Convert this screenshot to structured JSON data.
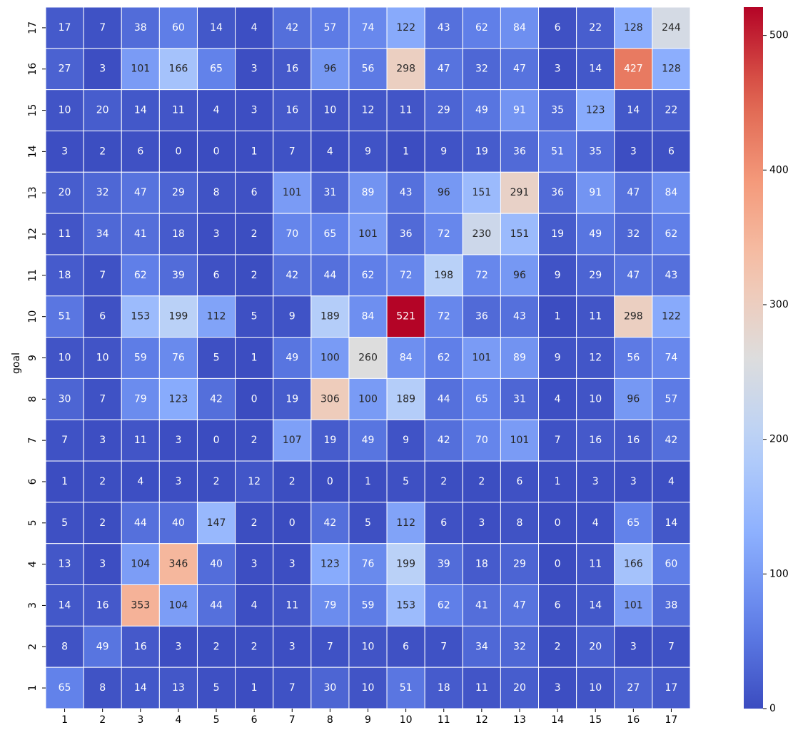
{
  "chart_data": {
    "type": "heatmap",
    "title": "",
    "xlabel": "",
    "ylabel": "goal",
    "x_categories": [
      "1",
      "2",
      "3",
      "4",
      "5",
      "6",
      "7",
      "8",
      "9",
      "10",
      "11",
      "12",
      "13",
      "14",
      "15",
      "16",
      "17"
    ],
    "y_categories": [
      "17",
      "16",
      "15",
      "14",
      "13",
      "12",
      "11",
      "10",
      "9",
      "8",
      "7",
      "6",
      "5",
      "4",
      "3",
      "2",
      "1"
    ],
    "values": [
      [
        17,
        7,
        38,
        60,
        14,
        4,
        42,
        57,
        74,
        122,
        43,
        62,
        84,
        6,
        22,
        128,
        244
      ],
      [
        27,
        3,
        101,
        166,
        65,
        3,
        16,
        96,
        56,
        298,
        47,
        32,
        47,
        3,
        14,
        427,
        128
      ],
      [
        10,
        20,
        14,
        11,
        4,
        3,
        16,
        10,
        12,
        11,
        29,
        49,
        91,
        35,
        123,
        14,
        22
      ],
      [
        3,
        2,
        6,
        0,
        0,
        1,
        7,
        4,
        9,
        1,
        9,
        19,
        36,
        51,
        35,
        3,
        6
      ],
      [
        20,
        32,
        47,
        29,
        8,
        6,
        101,
        31,
        89,
        43,
        96,
        151,
        291,
        36,
        91,
        47,
        84
      ],
      [
        11,
        34,
        41,
        18,
        3,
        2,
        70,
        65,
        101,
        36,
        72,
        230,
        151,
        19,
        49,
        32,
        62
      ],
      [
        18,
        7,
        62,
        39,
        6,
        2,
        42,
        44,
        62,
        72,
        198,
        72,
        96,
        9,
        29,
        47,
        43
      ],
      [
        51,
        6,
        153,
        199,
        112,
        5,
        9,
        189,
        84,
        521,
        72,
        36,
        43,
        1,
        11,
        298,
        122
      ],
      [
        10,
        10,
        59,
        76,
        5,
        1,
        49,
        100,
        260,
        84,
        62,
        101,
        89,
        9,
        12,
        56,
        74
      ],
      [
        30,
        7,
        79,
        123,
        42,
        0,
        19,
        306,
        100,
        189,
        44,
        65,
        31,
        4,
        10,
        96,
        57
      ],
      [
        7,
        3,
        11,
        3,
        0,
        2,
        107,
        19,
        49,
        9,
        42,
        70,
        101,
        7,
        16,
        16,
        42
      ],
      [
        1,
        2,
        4,
        3,
        2,
        12,
        2,
        0,
        1,
        5,
        2,
        2,
        6,
        1,
        3,
        3,
        4
      ],
      [
        5,
        2,
        44,
        40,
        147,
        2,
        0,
        42,
        5,
        112,
        6,
        3,
        8,
        0,
        4,
        65,
        14
      ],
      [
        13,
        3,
        104,
        346,
        40,
        3,
        3,
        123,
        76,
        199,
        39,
        18,
        29,
        0,
        11,
        166,
        60
      ],
      [
        14,
        16,
        353,
        104,
        44,
        4,
        11,
        79,
        59,
        153,
        62,
        41,
        47,
        6,
        14,
        101,
        38
      ],
      [
        8,
        49,
        16,
        3,
        2,
        2,
        3,
        7,
        10,
        6,
        7,
        34,
        32,
        2,
        20,
        3,
        7
      ],
      [
        65,
        8,
        14,
        13,
        5,
        1,
        7,
        30,
        10,
        51,
        18,
        11,
        20,
        3,
        10,
        27,
        17
      ]
    ],
    "vmin": 0,
    "vmax": 521,
    "colormap": "coolwarm",
    "colorbar_ticks": [
      "0",
      "100",
      "200",
      "300",
      "400",
      "500"
    ],
    "gridlines": true,
    "annotated": true
  }
}
